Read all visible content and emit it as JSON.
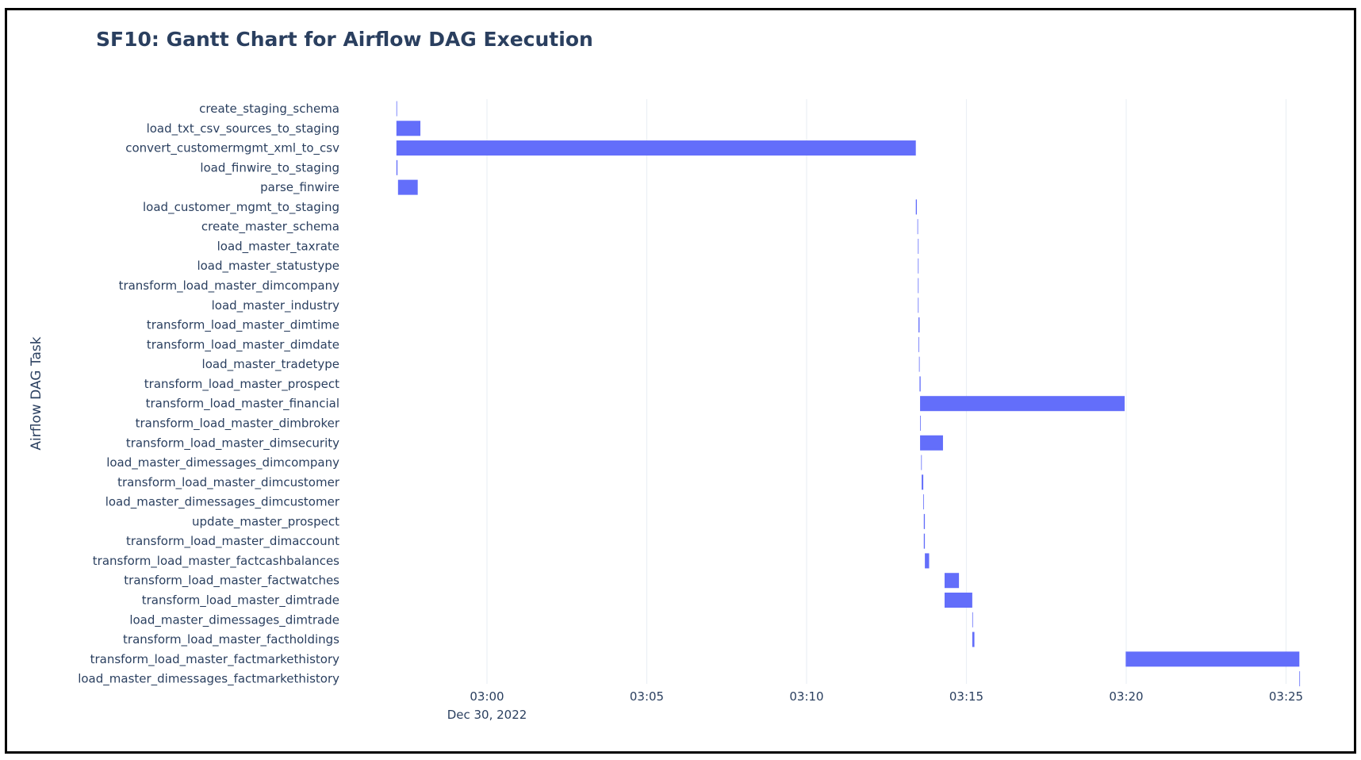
{
  "chart_data": {
    "type": "gantt",
    "title": "SF10: Gantt Chart for Airflow DAG Execution",
    "ylabel": "Airflow DAG Task",
    "xlabel": "",
    "date": "Dec 30, 2022",
    "x_ticks": [
      "03:00",
      "03:05",
      "03:10",
      "03:15",
      "03:20",
      "03:25"
    ],
    "xlim": [
      "02:57:00",
      "03:26:00"
    ],
    "bar_color": "#636efa",
    "grid": true,
    "tasks": [
      {
        "name": "create_staging_schema",
        "start": "02:57:10",
        "end": "02:57:11"
      },
      {
        "name": "load_txt_csv_sources_to_staging",
        "start": "02:57:10",
        "end": "02:57:55"
      },
      {
        "name": "convert_customermgmt_xml_to_csv",
        "start": "02:57:10",
        "end": "03:13:25"
      },
      {
        "name": "load_finwire_to_staging",
        "start": "02:57:10",
        "end": "02:57:12"
      },
      {
        "name": "parse_finwire",
        "start": "02:57:13",
        "end": "02:57:50"
      },
      {
        "name": "load_customer_mgmt_to_staging",
        "start": "03:13:25",
        "end": "03:13:27"
      },
      {
        "name": "create_master_schema",
        "start": "03:13:28",
        "end": "03:13:29"
      },
      {
        "name": "load_master_taxrate",
        "start": "03:13:29",
        "end": "03:13:30"
      },
      {
        "name": "load_master_statustype",
        "start": "03:13:29",
        "end": "03:13:30"
      },
      {
        "name": "transform_load_master_dimcompany",
        "start": "03:13:29",
        "end": "03:13:30"
      },
      {
        "name": "load_master_industry",
        "start": "03:13:29",
        "end": "03:13:30"
      },
      {
        "name": "transform_load_master_dimtime",
        "start": "03:13:30",
        "end": "03:13:32"
      },
      {
        "name": "transform_load_master_dimdate",
        "start": "03:13:30",
        "end": "03:13:31"
      },
      {
        "name": "load_master_tradetype",
        "start": "03:13:31",
        "end": "03:13:32"
      },
      {
        "name": "transform_load_master_prospect",
        "start": "03:13:32",
        "end": "03:13:34"
      },
      {
        "name": "transform_load_master_financial",
        "start": "03:13:33",
        "end": "03:19:57"
      },
      {
        "name": "transform_load_master_dimbroker",
        "start": "03:13:33",
        "end": "03:13:34"
      },
      {
        "name": "transform_load_master_dimsecurity",
        "start": "03:13:33",
        "end": "03:14:16"
      },
      {
        "name": "load_master_dimessages_dimcompany",
        "start": "03:13:35",
        "end": "03:13:36"
      },
      {
        "name": "transform_load_master_dimcustomer",
        "start": "03:13:36",
        "end": "03:13:39"
      },
      {
        "name": "load_master_dimessages_dimcustomer",
        "start": "03:13:39",
        "end": "03:13:40"
      },
      {
        "name": "update_master_prospect",
        "start": "03:13:40",
        "end": "03:13:42"
      },
      {
        "name": "transform_load_master_dimaccount",
        "start": "03:13:40",
        "end": "03:13:42"
      },
      {
        "name": "transform_load_master_factcashbalances",
        "start": "03:13:42",
        "end": "03:13:50"
      },
      {
        "name": "transform_load_master_factwatches",
        "start": "03:14:19",
        "end": "03:14:46"
      },
      {
        "name": "transform_load_master_dimtrade",
        "start": "03:14:19",
        "end": "03:15:11"
      },
      {
        "name": "load_master_dimessages_dimtrade",
        "start": "03:15:11",
        "end": "03:15:12"
      },
      {
        "name": "transform_load_master_factholdings",
        "start": "03:15:11",
        "end": "03:15:15"
      },
      {
        "name": "transform_load_master_factmarkethistory",
        "start": "03:19:59",
        "end": "03:25:25"
      },
      {
        "name": "load_master_dimessages_factmarkethistory",
        "start": "03:25:25",
        "end": "03:25:26"
      }
    ]
  }
}
